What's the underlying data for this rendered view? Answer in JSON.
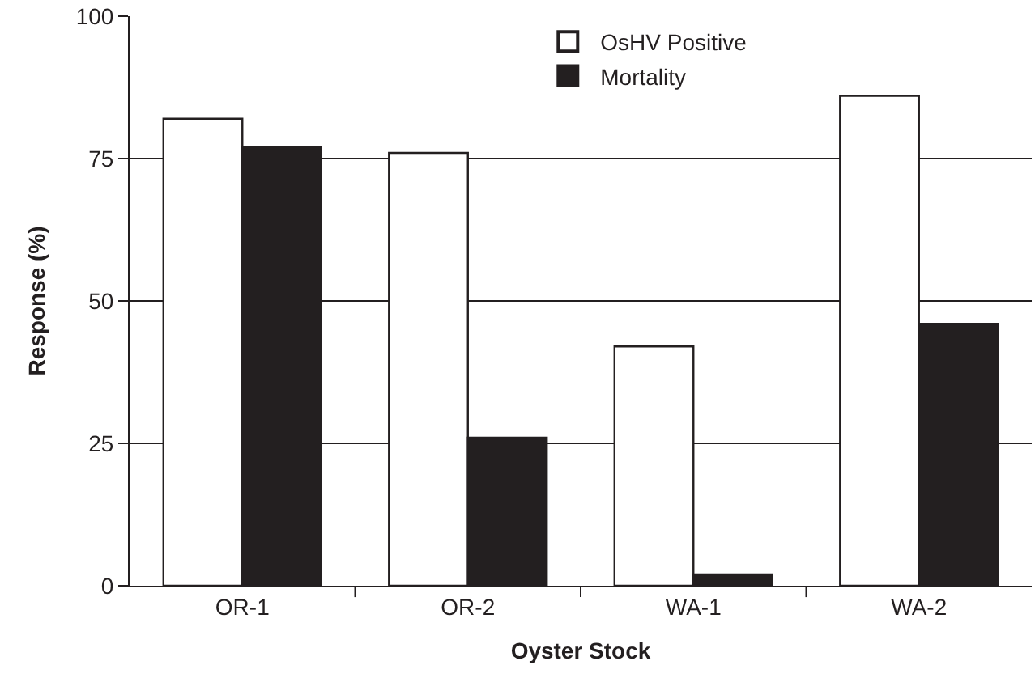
{
  "chart_data": {
    "type": "bar",
    "xlabel": "Oyster Stock",
    "ylabel": "Response (%)",
    "categories": [
      "OR-1",
      "OR-2",
      "WA-1",
      "WA-2"
    ],
    "series": [
      {
        "name": "OsHV Positive",
        "color": "#ffffff",
        "values": [
          82,
          76,
          42,
          86
        ]
      },
      {
        "name": "Mortality",
        "color": "#231f20",
        "values": [
          77,
          26,
          2,
          46
        ]
      }
    ],
    "ylim": [
      0,
      100
    ],
    "yticks": [
      0,
      25,
      50,
      75,
      100
    ],
    "grid": "y",
    "legend": "top"
  }
}
